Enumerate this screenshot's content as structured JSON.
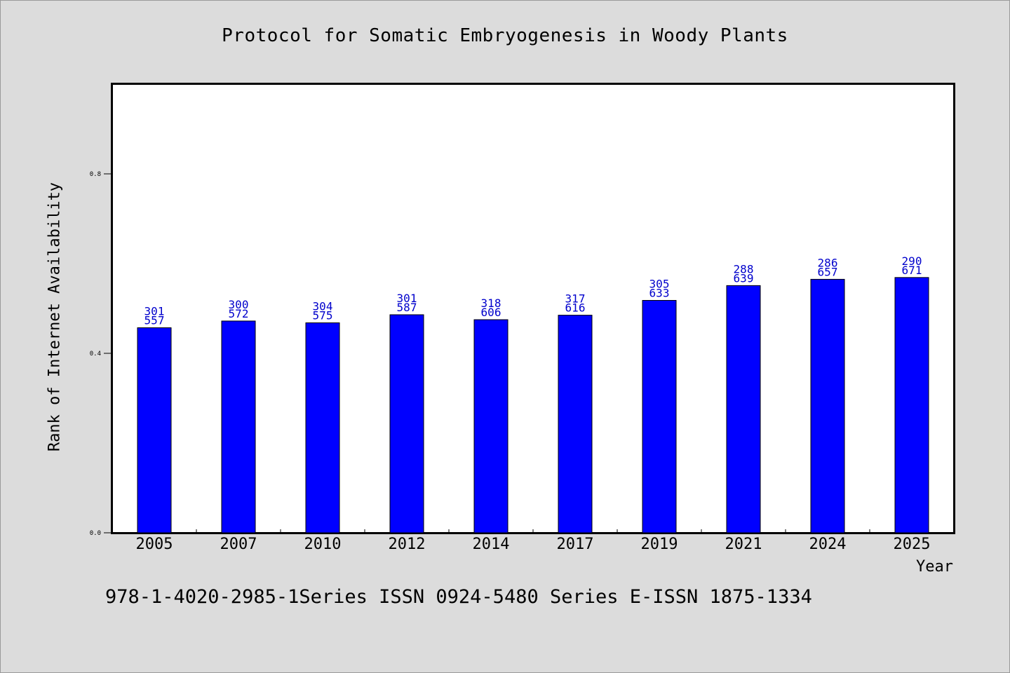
{
  "chart_data": {
    "type": "bar",
    "title": "Protocol for Somatic Embryogenesis in Woody Plants",
    "xlabel": "Year",
    "ylabel": "Rank of Internet Availability",
    "categories": [
      "2005",
      "2007",
      "2010",
      "2012",
      "2014",
      "2017",
      "2019",
      "2021",
      "2024",
      "2025"
    ],
    "values": [
      0.457,
      0.472,
      0.468,
      0.486,
      0.475,
      0.485,
      0.518,
      0.551,
      0.565,
      0.569
    ],
    "bar_labels_top": [
      "301",
      "300",
      "304",
      "301",
      "318",
      "317",
      "305",
      "288",
      "286",
      "290"
    ],
    "bar_labels_bottom": [
      "557",
      "572",
      "575",
      "587",
      "606",
      "616",
      "633",
      "639",
      "657",
      "671"
    ],
    "ylim": [
      0.0,
      1.0
    ],
    "yticks": [
      0.0,
      0.4,
      0.8
    ],
    "ytick_labels": [
      "0.0",
      "0.4",
      "0.8"
    ],
    "grid": false,
    "bar_color": "#0000ff",
    "label_color": "#0000cc"
  },
  "footer": {
    "text": "978-1-4020-2985-1Series ISSN 0924-5480 Series E-ISSN 1875-1334"
  }
}
